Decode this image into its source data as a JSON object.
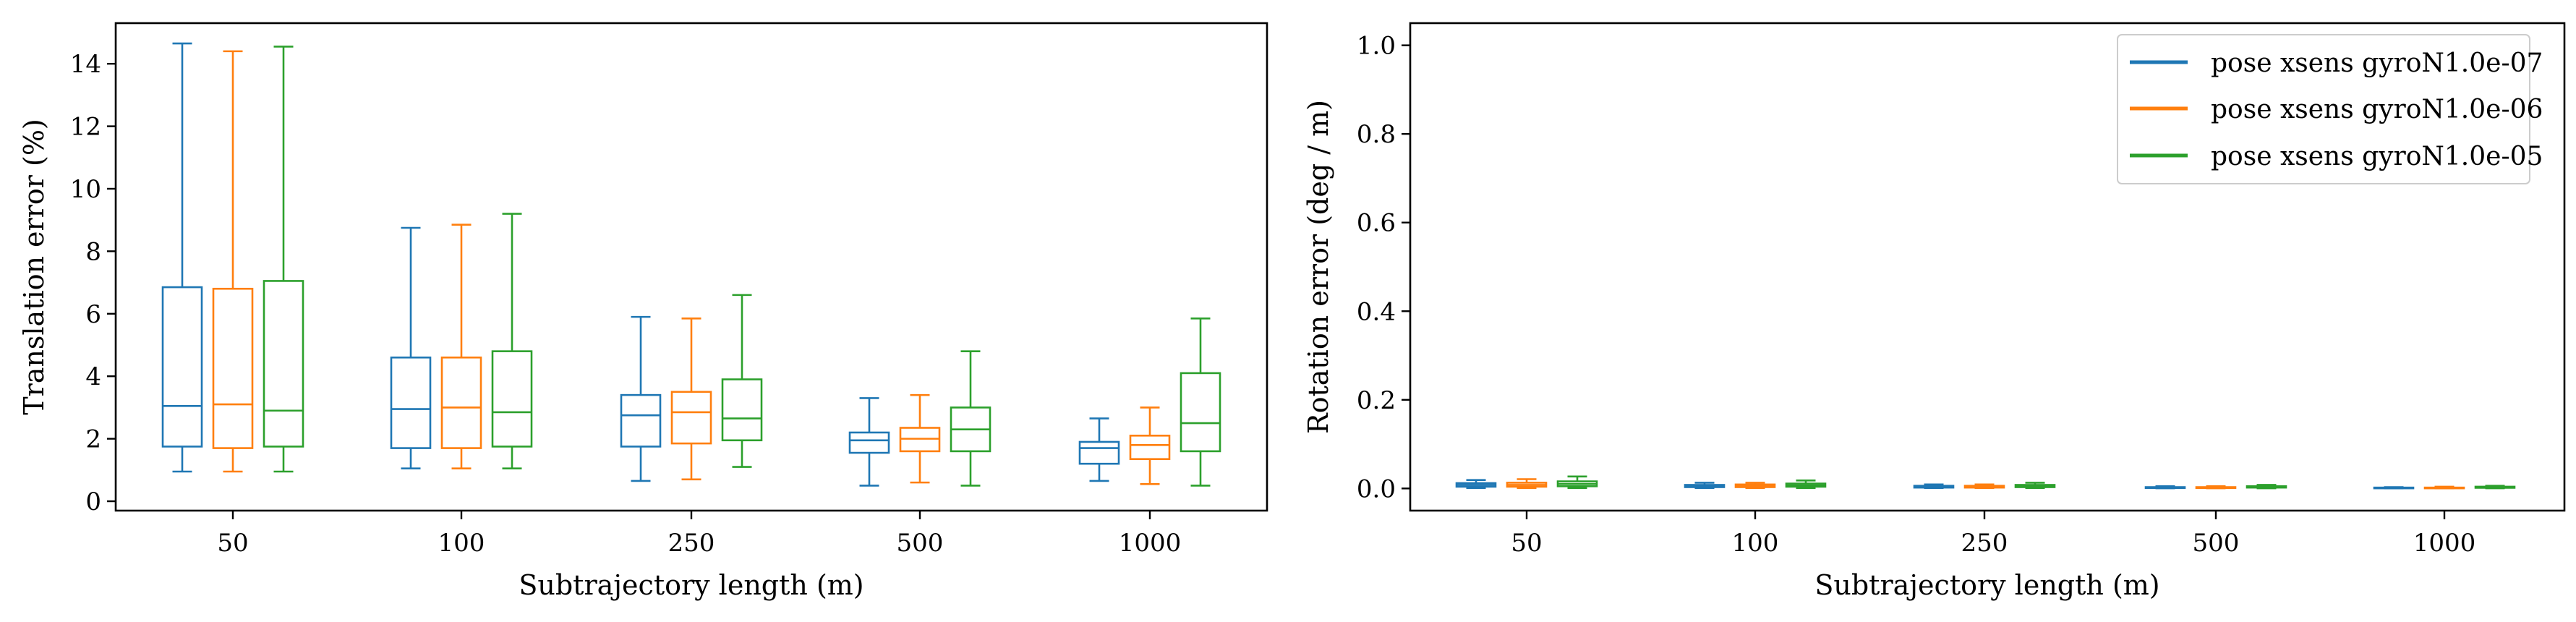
{
  "colors": {
    "series": [
      "#1f77b4",
      "#ff7f0e",
      "#2ca02c"
    ]
  },
  "chart_data": [
    {
      "type": "box",
      "title": "",
      "xlabel": "Subtrajectory length (m)",
      "ylabel": "Translation error (%)",
      "categories": [
        "50",
        "100",
        "250",
        "500",
        "1000"
      ],
      "ylim": [
        -0.3,
        15.3
      ],
      "yticks": [
        0,
        2,
        4,
        6,
        8,
        10,
        12,
        14
      ],
      "grid": false,
      "series": [
        {
          "name": "",
          "boxes": [
            {
              "whislo": 0.95,
              "q1": 1.75,
              "med": 3.05,
              "q3": 6.85,
              "whishi": 14.65
            },
            {
              "whislo": 1.05,
              "q1": 1.7,
              "med": 2.95,
              "q3": 4.6,
              "whishi": 8.75
            },
            {
              "whislo": 0.65,
              "q1": 1.75,
              "med": 2.75,
              "q3": 3.4,
              "whishi": 5.9
            },
            {
              "whislo": 0.5,
              "q1": 1.55,
              "med": 1.95,
              "q3": 2.2,
              "whishi": 3.3
            },
            {
              "whislo": 0.65,
              "q1": 1.2,
              "med": 1.7,
              "q3": 1.9,
              "whishi": 2.65
            }
          ]
        },
        {
          "name": "",
          "boxes": [
            {
              "whislo": 0.95,
              "q1": 1.7,
              "med": 3.1,
              "q3": 6.8,
              "whishi": 14.4
            },
            {
              "whislo": 1.05,
              "q1": 1.7,
              "med": 3.0,
              "q3": 4.6,
              "whishi": 8.85
            },
            {
              "whislo": 0.7,
              "q1": 1.85,
              "med": 2.85,
              "q3": 3.5,
              "whishi": 5.85
            },
            {
              "whislo": 0.6,
              "q1": 1.6,
              "med": 2.0,
              "q3": 2.35,
              "whishi": 3.4
            },
            {
              "whislo": 0.55,
              "q1": 1.35,
              "med": 1.8,
              "q3": 2.1,
              "whishi": 3.0
            }
          ]
        },
        {
          "name": "",
          "boxes": [
            {
              "whislo": 0.95,
              "q1": 1.75,
              "med": 2.9,
              "q3": 7.05,
              "whishi": 14.55
            },
            {
              "whislo": 1.05,
              "q1": 1.75,
              "med": 2.85,
              "q3": 4.8,
              "whishi": 9.2
            },
            {
              "whislo": 1.1,
              "q1": 1.95,
              "med": 2.65,
              "q3": 3.9,
              "whishi": 6.6
            },
            {
              "whislo": 0.5,
              "q1": 1.6,
              "med": 2.3,
              "q3": 3.0,
              "whishi": 4.8
            },
            {
              "whislo": 0.5,
              "q1": 1.6,
              "med": 2.5,
              "q3": 4.1,
              "whishi": 5.85
            }
          ]
        }
      ]
    },
    {
      "type": "box",
      "title": "",
      "xlabel": "Subtrajectory length (m)",
      "ylabel": "Rotation error (deg / m)",
      "categories": [
        "50",
        "100",
        "250",
        "500",
        "1000"
      ],
      "ylim": [
        -0.05,
        1.05
      ],
      "yticks": [
        0.0,
        0.2,
        0.4,
        0.6,
        0.8,
        1.0
      ],
      "ytick_labels": [
        "0.0",
        "0.2",
        "0.4",
        "0.6",
        "0.8",
        "1.0"
      ],
      "grid": false,
      "legend": {
        "placement": "upper right",
        "entries": [
          "pose xsens gyroN1.0e-07",
          "pose xsens gyroN1.0e-06",
          "pose xsens gyroN1.0e-05"
        ]
      },
      "series": [
        {
          "name": "pose xsens gyroN1.0e-07",
          "boxes": [
            {
              "whislo": 0.001,
              "q1": 0.004,
              "med": 0.008,
              "q3": 0.012,
              "whishi": 0.019
            },
            {
              "whislo": 0.001,
              "q1": 0.003,
              "med": 0.006,
              "q3": 0.008,
              "whishi": 0.013
            },
            {
              "whislo": 0.001,
              "q1": 0.002,
              "med": 0.004,
              "q3": 0.006,
              "whishi": 0.009
            },
            {
              "whislo": 0.0005,
              "q1": 0.001,
              "med": 0.002,
              "q3": 0.003,
              "whishi": 0.005
            },
            {
              "whislo": 0.0003,
              "q1": 0.001,
              "med": 0.0015,
              "q3": 0.002,
              "whishi": 0.003
            }
          ]
        },
        {
          "name": "pose xsens gyroN1.0e-06",
          "boxes": [
            {
              "whislo": 0.001,
              "q1": 0.004,
              "med": 0.008,
              "q3": 0.013,
              "whishi": 0.021
            },
            {
              "whislo": 0.001,
              "q1": 0.003,
              "med": 0.006,
              "q3": 0.009,
              "whishi": 0.013
            },
            {
              "whislo": 0.001,
              "q1": 0.002,
              "med": 0.004,
              "q3": 0.006,
              "whishi": 0.009
            },
            {
              "whislo": 0.0005,
              "q1": 0.001,
              "med": 0.002,
              "q3": 0.003,
              "whishi": 0.005
            },
            {
              "whislo": 0.0003,
              "q1": 0.001,
              "med": 0.0015,
              "q3": 0.002,
              "whishi": 0.004
            }
          ]
        },
        {
          "name": "pose xsens gyroN1.0e-05",
          "boxes": [
            {
              "whislo": 0.001,
              "q1": 0.005,
              "med": 0.01,
              "q3": 0.016,
              "whishi": 0.027
            },
            {
              "whislo": 0.001,
              "q1": 0.004,
              "med": 0.007,
              "q3": 0.011,
              "whishi": 0.018
            },
            {
              "whislo": 0.001,
              "q1": 0.003,
              "med": 0.006,
              "q3": 0.008,
              "whishi": 0.013
            },
            {
              "whislo": 0.0005,
              "q1": 0.002,
              "med": 0.003,
              "q3": 0.005,
              "whishi": 0.008
            },
            {
              "whislo": 0.0005,
              "q1": 0.0015,
              "med": 0.0025,
              "q3": 0.004,
              "whishi": 0.006
            }
          ]
        }
      ]
    }
  ]
}
